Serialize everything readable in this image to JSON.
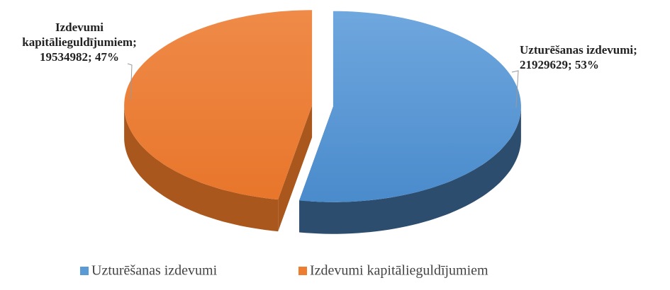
{
  "chart_data": {
    "type": "pie3d",
    "categories": [
      "Uzturēšanas izdevumi",
      "Izdevumi kapitālieguldījumiem"
    ],
    "values": [
      21929629,
      19534982
    ],
    "value_labels": [
      [
        "Uzturēšanas izdevumi;",
        "21929629; 53%"
      ],
      [
        "Izdevumi",
        "kapitālieguldījumiem;",
        "19534982; 47%"
      ]
    ],
    "colors": [
      "#5b9bd5",
      "#ed7d31"
    ],
    "legend": "bottom"
  }
}
